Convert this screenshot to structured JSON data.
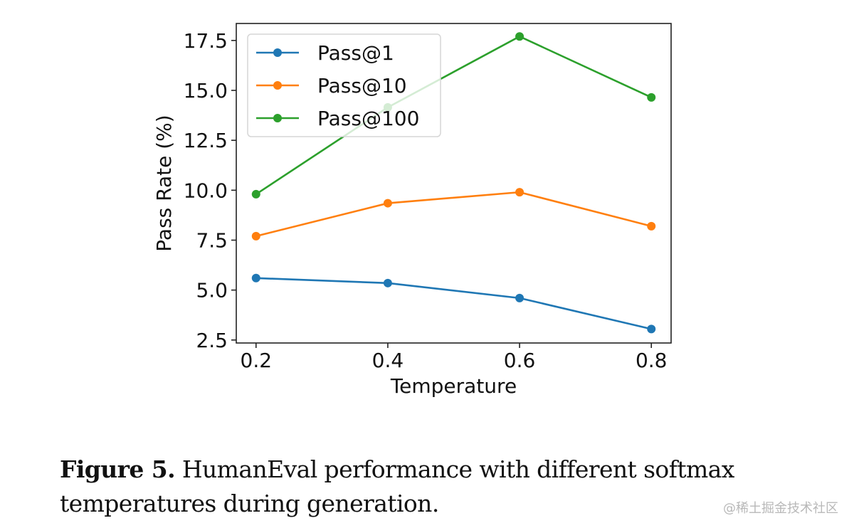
{
  "chart_data": {
    "type": "line",
    "title": "",
    "xlabel": "Temperature",
    "ylabel": "Pass Rate (%)",
    "x": [
      0.2,
      0.4,
      0.6,
      0.8
    ],
    "x_tick_labels": [
      "0.2",
      "0.4",
      "0.6",
      "0.8"
    ],
    "y_ticks": [
      2.5,
      5.0,
      7.5,
      10.0,
      12.5,
      15.0,
      17.5
    ],
    "y_tick_labels": [
      "2.5",
      "5.0",
      "7.5",
      "10.0",
      "12.5",
      "15.0",
      "17.5"
    ],
    "xlim": [
      0.17,
      0.83
    ],
    "ylim": [
      2.35,
      18.35
    ],
    "grid": false,
    "legend_position": "top-left",
    "series": [
      {
        "name": "Pass@1",
        "color": "#1f77b4",
        "values": [
          5.6,
          5.35,
          4.6,
          3.05
        ]
      },
      {
        "name": "Pass@10",
        "color": "#ff7f0e",
        "values": [
          7.7,
          9.35,
          9.9,
          8.2
        ]
      },
      {
        "name": "Pass@100",
        "color": "#2ca02c",
        "values": [
          9.8,
          14.15,
          17.7,
          14.65
        ]
      }
    ]
  },
  "caption": {
    "label": "Figure 5.",
    "text": " HumanEval performance with different softmax temperatures during generation."
  },
  "watermark": "@稀土掘金技术社区"
}
